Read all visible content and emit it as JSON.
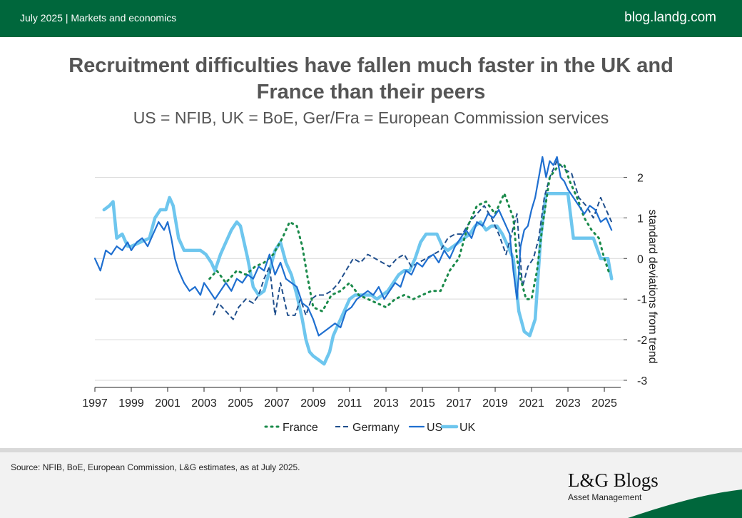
{
  "header": {
    "date_section": "July 2025 | Markets and economics",
    "site": "blog.landg.com"
  },
  "footer": {
    "source": "Source: NFIB, BoE, European Commission, L&G estimates, as at July 2025.",
    "logo_name": "L&G Blogs",
    "logo_sub": "Asset Management"
  },
  "colors": {
    "brand_green": "#00673c",
    "france": "#1a8a4a",
    "germany": "#1f4e8c",
    "us": "#1f6fd0",
    "uk": "#6ec6ee"
  },
  "chart_data": {
    "type": "line",
    "title": "Recruitment difficulties have fallen much faster in the UK and France than their peers",
    "subtitle": "US = NFIB, UK = BoE, Ger/Fra = European Commission services",
    "ylabel": "standard deviations from trend",
    "xlabel": "",
    "xlim": [
      1997,
      2025.9
    ],
    "ylim": [
      -3,
      2.5
    ],
    "x_ticks": [
      "1997",
      "1999",
      "2001",
      "2003",
      "2005",
      "2007",
      "2009",
      "2011",
      "2013",
      "2015",
      "2017",
      "2019",
      "2021",
      "2023",
      "2025"
    ],
    "y_ticks": [
      "2",
      "1",
      "0",
      "-1",
      "-2",
      "-3"
    ],
    "grid": "horizontal",
    "legend": "bottom",
    "series": [
      {
        "name": "France",
        "style": "dotted",
        "x": [
          2003.3,
          2003.7,
          2004.2,
          2004.8,
          2005.3,
          2005.8,
          2006.3,
          2006.8,
          2007.3,
          2007.7,
          2008.1,
          2008.4,
          2008.7,
          2009.0,
          2009.5,
          2010.0,
          2010.5,
          2011.0,
          2011.5,
          2012.0,
          2012.5,
          2013.0,
          2013.5,
          2014.0,
          2014.5,
          2015.0,
          2015.5,
          2016.0,
          2016.5,
          2017.0,
          2017.5,
          2018.0,
          2018.5,
          2019.0,
          2019.5,
          2020.0,
          2020.2,
          2020.4,
          2020.7,
          2021.0,
          2021.3,
          2021.6,
          2022.0,
          2022.5,
          2022.8,
          2023.1,
          2023.5,
          2023.9,
          2024.3,
          2024.7,
          2025.0,
          2025.3
        ],
        "y": [
          -0.5,
          -0.3,
          -0.6,
          -0.3,
          -0.4,
          -0.2,
          -0.1,
          0.1,
          0.5,
          0.9,
          0.8,
          0.3,
          -0.5,
          -1.2,
          -1.3,
          -0.9,
          -0.8,
          -0.6,
          -0.9,
          -1.0,
          -1.1,
          -1.2,
          -1.0,
          -0.9,
          -1.0,
          -0.9,
          -0.8,
          -0.8,
          -0.3,
          0.0,
          0.8,
          1.3,
          1.4,
          1.1,
          1.6,
          1.0,
          0.0,
          -0.5,
          -1.0,
          -1.0,
          -0.3,
          0.8,
          2.0,
          2.3,
          2.3,
          1.9,
          1.5,
          1.0,
          0.7,
          0.5,
          0.0,
          -0.4
        ]
      },
      {
        "name": "Germany",
        "style": "dashed",
        "x": [
          2003.5,
          2003.8,
          2004.2,
          2004.6,
          2004.9,
          2005.3,
          2005.7,
          2006.0,
          2006.3,
          2006.6,
          2006.9,
          2007.2,
          2007.6,
          2008.0,
          2008.3,
          2008.6,
          2008.9,
          2009.2,
          2009.6,
          2010.0,
          2010.4,
          2010.8,
          2011.2,
          2011.6,
          2012.0,
          2012.4,
          2012.8,
          2013.2,
          2013.6,
          2014.0,
          2014.4,
          2014.8,
          2015.2,
          2015.6,
          2016.0,
          2016.4,
          2016.8,
          2017.2,
          2017.6,
          2018.0,
          2018.4,
          2018.8,
          2019.2,
          2019.6,
          2019.9,
          2020.2,
          2020.5,
          2020.8,
          2021.1,
          2021.4,
          2021.7,
          2022.0,
          2022.4,
          2022.8,
          2023.2,
          2023.6,
          2024.0,
          2024.4,
          2024.8,
          2025.2,
          2025.4
        ],
        "y": [
          -1.4,
          -1.1,
          -1.3,
          -1.5,
          -1.2,
          -1.0,
          -1.1,
          -0.9,
          -0.5,
          -0.2,
          -1.4,
          -0.6,
          -1.4,
          -1.4,
          -1.0,
          -1.4,
          -1.0,
          -0.9,
          -0.9,
          -0.8,
          -0.6,
          -0.3,
          0.0,
          -0.1,
          0.1,
          0.0,
          -0.1,
          -0.2,
          0.0,
          0.1,
          -0.2,
          -0.1,
          0.0,
          0.1,
          0.2,
          0.5,
          0.6,
          0.6,
          0.9,
          1.1,
          1.3,
          1.0,
          0.6,
          0.1,
          0.6,
          1.1,
          -0.7,
          -0.2,
          0.0,
          0.5,
          1.5,
          2.0,
          2.4,
          2.2,
          2.1,
          1.5,
          1.3,
          1.0,
          1.5,
          1.1,
          0.9
        ]
      },
      {
        "name": "US",
        "x": [
          1997.0,
          1997.3,
          1997.6,
          1997.9,
          1998.2,
          1998.5,
          1998.8,
          1999.0,
          1999.3,
          1999.6,
          1999.9,
          2000.2,
          2000.5,
          2000.8,
          2001.0,
          2001.2,
          2001.4,
          2001.6,
          2001.9,
          2002.2,
          2002.5,
          2002.8,
          2003.0,
          2003.3,
          2003.6,
          2003.9,
          2004.2,
          2004.5,
          2004.8,
          2005.1,
          2005.4,
          2005.7,
          2006.0,
          2006.3,
          2006.6,
          2006.9,
          2007.2,
          2007.5,
          2007.8,
          2008.1,
          2008.4,
          2008.7,
          2009.0,
          2009.3,
          2009.6,
          2009.9,
          2010.2,
          2010.5,
          2010.8,
          2011.1,
          2011.4,
          2011.7,
          2012.0,
          2012.3,
          2012.6,
          2012.9,
          2013.2,
          2013.5,
          2013.8,
          2014.1,
          2014.4,
          2014.7,
          2015.0,
          2015.3,
          2015.6,
          2015.9,
          2016.2,
          2016.5,
          2016.8,
          2017.1,
          2017.4,
          2017.7,
          2018.0,
          2018.3,
          2018.6,
          2018.9,
          2019.2,
          2019.5,
          2019.8,
          2020.0,
          2020.2,
          2020.4,
          2020.6,
          2020.8,
          2021.0,
          2021.2,
          2021.4,
          2021.6,
          2021.8,
          2022.0,
          2022.2,
          2022.4,
          2022.6,
          2022.8,
          2023.0,
          2023.3,
          2023.6,
          2023.9,
          2024.2,
          2024.5,
          2024.8,
          2025.1,
          2025.4
        ],
        "y": [
          0.0,
          -0.3,
          0.2,
          0.1,
          0.3,
          0.2,
          0.4,
          0.2,
          0.4,
          0.5,
          0.3,
          0.6,
          0.9,
          0.7,
          0.9,
          0.5,
          0.0,
          -0.3,
          -0.6,
          -0.8,
          -0.7,
          -0.9,
          -0.6,
          -0.8,
          -1.0,
          -0.8,
          -0.6,
          -0.8,
          -0.5,
          -0.6,
          -0.4,
          -0.5,
          -0.2,
          -0.3,
          0.1,
          -0.4,
          -0.1,
          -0.5,
          -0.6,
          -0.7,
          -1.1,
          -1.2,
          -1.5,
          -1.9,
          -1.8,
          -1.7,
          -1.6,
          -1.7,
          -1.3,
          -1.2,
          -1.0,
          -0.9,
          -0.8,
          -0.9,
          -0.7,
          -1.0,
          -0.8,
          -0.6,
          -0.7,
          -0.3,
          -0.4,
          -0.1,
          -0.2,
          0.0,
          0.1,
          -0.1,
          0.2,
          0.0,
          0.3,
          0.5,
          0.7,
          0.5,
          0.9,
          0.8,
          1.1,
          1.0,
          1.2,
          0.9,
          0.6,
          -0.3,
          -1.0,
          0.3,
          0.7,
          0.8,
          1.2,
          1.5,
          2.0,
          2.5,
          2.0,
          2.4,
          2.3,
          2.5,
          2.0,
          1.9,
          1.7,
          1.5,
          1.3,
          1.1,
          1.3,
          1.2,
          0.9,
          1.0,
          0.7
        ]
      },
      {
        "name": "UK",
        "x": [
          1997.5,
          1997.8,
          1998.0,
          1998.2,
          1998.5,
          1998.8,
          1999.0,
          1999.5,
          2000.0,
          2000.3,
          2000.6,
          2000.9,
          2001.1,
          2001.3,
          2001.6,
          2001.9,
          2002.2,
          2002.5,
          2002.8,
          2003.1,
          2003.4,
          2003.6,
          2003.9,
          2004.2,
          2004.5,
          2004.8,
          2005.0,
          2005.2,
          2005.4,
          2005.7,
          2006.0,
          2006.3,
          2006.6,
          2006.9,
          2007.2,
          2007.5,
          2007.8,
          2008.1,
          2008.4,
          2008.6,
          2008.8,
          2009.0,
          2009.3,
          2009.6,
          2009.9,
          2010.1,
          2010.4,
          2010.7,
          2011.0,
          2011.3,
          2011.6,
          2011.9,
          2012.2,
          2012.5,
          2012.8,
          2013.1,
          2013.4,
          2013.7,
          2014.0,
          2014.3,
          2014.6,
          2014.9,
          2015.2,
          2015.5,
          2015.8,
          2016.1,
          2016.4,
          2016.7,
          2017.0,
          2017.3,
          2017.6,
          2017.9,
          2018.2,
          2018.5,
          2018.8,
          2019.1,
          2019.4,
          2019.7,
          2020.0,
          2020.3,
          2020.6,
          2020.9,
          2021.2,
          2021.5,
          2021.8,
          2022.2,
          2022.6,
          2023.0,
          2023.3,
          2023.6,
          2024.0,
          2024.4,
          2024.8,
          2025.2,
          2025.4
        ],
        "y": [
          1.2,
          1.3,
          1.4,
          0.5,
          0.6,
          0.3,
          0.3,
          0.4,
          0.5,
          1.0,
          1.2,
          1.2,
          1.5,
          1.3,
          0.5,
          0.2,
          0.2,
          0.2,
          0.2,
          0.1,
          -0.1,
          -0.3,
          0.1,
          0.4,
          0.7,
          0.9,
          0.8,
          0.4,
          0.0,
          -0.7,
          -0.9,
          -0.8,
          -0.3,
          0.2,
          0.4,
          -0.1,
          -0.4,
          -0.9,
          -1.5,
          -2.0,
          -2.3,
          -2.4,
          -2.5,
          -2.6,
          -2.3,
          -1.9,
          -1.6,
          -1.3,
          -1.0,
          -0.9,
          -0.9,
          -0.9,
          -0.9,
          -1.0,
          -0.9,
          -0.8,
          -0.6,
          -0.4,
          -0.3,
          -0.3,
          0.0,
          0.4,
          0.6,
          0.6,
          0.6,
          0.3,
          0.2,
          0.3,
          0.4,
          0.5,
          0.6,
          0.8,
          0.9,
          0.7,
          0.8,
          0.8,
          0.6,
          0.3,
          0.0,
          -1.3,
          -1.8,
          -1.9,
          -1.5,
          0.5,
          1.6,
          1.6,
          1.6,
          1.6,
          0.5,
          0.5,
          0.5,
          0.5,
          0.0,
          0.0,
          -0.5
        ]
      }
    ]
  }
}
